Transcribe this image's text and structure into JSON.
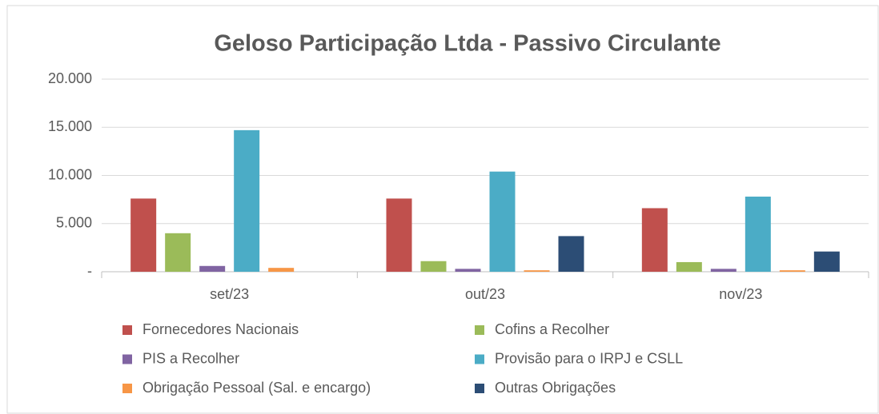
{
  "chart_data": {
    "type": "bar",
    "title": "Geloso Participação Ltda - Passivo Circulante",
    "categories": [
      "set/23",
      "out/23",
      "nov/23"
    ],
    "series": [
      {
        "name": "Fornecedores Nacionais",
        "color": "#c0504d",
        "values": [
          7600,
          7600,
          6600
        ]
      },
      {
        "name": "Cofins a Recolher",
        "color": "#9bbb59",
        "values": [
          4000,
          1100,
          1000
        ]
      },
      {
        "name": "PIS a Recolher",
        "color": "#8064a2",
        "values": [
          600,
          300,
          300
        ]
      },
      {
        "name": "Provisão para o IRPJ e CSLL",
        "color": "#4bacc6",
        "values": [
          14700,
          10400,
          7800
        ]
      },
      {
        "name": "Obrigação Pessoal (Sal. e encargo)",
        "color": "#f79646",
        "values": [
          400,
          150,
          150
        ]
      },
      {
        "name": "Outras Obrigações",
        "color": "#2c4d75",
        "values": [
          0,
          3700,
          2100
        ]
      }
    ],
    "ylim": [
      0,
      20000
    ],
    "yticks": [
      {
        "value": 0,
        "label": "-"
      },
      {
        "value": 5000,
        "label": "5.000"
      },
      {
        "value": 10000,
        "label": "10.000"
      },
      {
        "value": 15000,
        "label": "15.000"
      },
      {
        "value": 20000,
        "label": "20.000"
      }
    ],
    "grid": true,
    "legend": "bottom"
  }
}
